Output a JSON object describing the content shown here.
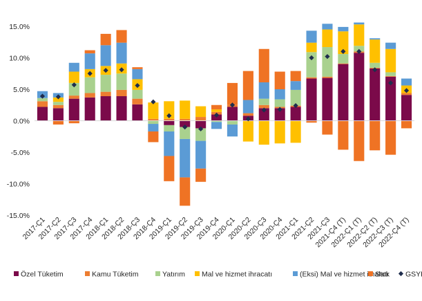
{
  "chart_data": {
    "type": "bar",
    "stacked": true,
    "title": "",
    "xlabel": "",
    "ylabel": "",
    "ylim": [
      -15,
      15
    ],
    "yticks": [
      -15,
      -10,
      -5,
      0,
      5,
      10,
      15
    ],
    "ytick_labels": [
      "-15.0%",
      "-10.0%",
      "-5.0%",
      "0.0%",
      "5.0%",
      "10.0%",
      "15.0%"
    ],
    "grid": false,
    "legend_position": "bottom",
    "categories": [
      "2017-Ç1",
      "2017-Ç2",
      "2017-Ç3",
      "2017-Ç4",
      "2018-Ç1",
      "2018-Ç2",
      "2018-Ç3",
      "2018-Ç4",
      "2019-Ç1",
      "2019-Ç2",
      "2019-Ç3",
      "2019-Ç4",
      "2020-Ç1",
      "2020-Ç2",
      "2020-Ç3",
      "2020-Ç4",
      "2021-Ç1",
      "2021-Ç2",
      "2021-Ç3",
      "2021-Ç4 (T)",
      "2022-Ç1 (T)",
      "2022-Ç2 (T)",
      "2022-Ç3 (T)",
      "2022-Ç4 (T)"
    ],
    "series": [
      {
        "name": "Özel Tüketim",
        "color": "#7b0a4a",
        "values": [
          2.2,
          2.0,
          3.5,
          3.7,
          3.9,
          3.9,
          2.6,
          0.0,
          -0.7,
          -1.0,
          -1.2,
          1.0,
          2.2,
          0.8,
          2.0,
          2.0,
          2.2,
          6.7,
          6.8,
          9.0,
          10.8,
          8.3,
          7.0,
          4.1
        ]
      },
      {
        "name": "Kamu Tüketim",
        "color": "#ed7d31",
        "values": [
          0.9,
          0.5,
          0.5,
          0.7,
          0.7,
          1.0,
          0.9,
          0.3,
          0.3,
          0.3,
          0.6,
          0.4,
          0.3,
          0.4,
          0.5,
          0.2,
          0.2,
          0.2,
          0.2,
          0.1,
          0.2,
          0.1,
          0.1,
          0.3
        ]
      },
      {
        "name": "Yatırım",
        "color": "#a9d18e",
        "values": [
          0.5,
          0.5,
          2.0,
          2.5,
          2.7,
          2.6,
          1.4,
          -0.5,
          -1.0,
          -1.9,
          -2.0,
          -0.2,
          -0.6,
          0.0,
          1.0,
          1.2,
          2.5,
          4.0,
          4.7,
          1.5,
          0.9,
          0.8,
          0.6,
          0.0
        ]
      },
      {
        "name": "Mal ve hizmet ihracatı",
        "color": "#ffc000",
        "values": [
          0.0,
          0.7,
          1.8,
          1.3,
          1.4,
          1.6,
          1.7,
          2.6,
          2.8,
          2.9,
          1.7,
          0.4,
          0.0,
          -3.3,
          -3.8,
          -3.6,
          -3.5,
          1.5,
          2.8,
          3.6,
          3.4,
          3.7,
          3.7,
          1.2
        ]
      },
      {
        "name": "(Eksi) Mal ve hizmet ithalatı",
        "color": "#5b9bd5",
        "values": [
          1.1,
          0.7,
          1.4,
          2.5,
          3.3,
          3.3,
          1.6,
          -1.2,
          -3.9,
          -6.1,
          -4.4,
          -1.1,
          -1.9,
          2.1,
          2.6,
          1.6,
          1.4,
          1.9,
          0.9,
          0.7,
          0.3,
          0.2,
          1.0,
          1.1
        ]
      },
      {
        "name": "Stok",
        "color": "#ef7324",
        "values": [
          0.0,
          -0.6,
          -0.4,
          0.5,
          1.8,
          2.0,
          0.3,
          -1.7,
          -4.0,
          -4.5,
          -2.1,
          0.7,
          3.5,
          4.6,
          5.3,
          2.8,
          1.6,
          -0.3,
          -2.2,
          -4.6,
          -6.4,
          -4.7,
          -5.4,
          -1.2
        ]
      }
    ],
    "gsyh": {
      "name": "GSYH",
      "color": "#1f2d4d",
      "values": [
        3.9,
        3.8,
        5.7,
        7.5,
        8.0,
        8.1,
        5.6,
        3.0,
        0.8,
        -1.0,
        -1.3,
        0.9,
        2.5,
        0.3,
        1.7,
        1.8,
        2.4,
        10.0,
        10.2,
        11.0,
        11.0,
        8.1,
        6.0,
        4.8
      ]
    }
  }
}
